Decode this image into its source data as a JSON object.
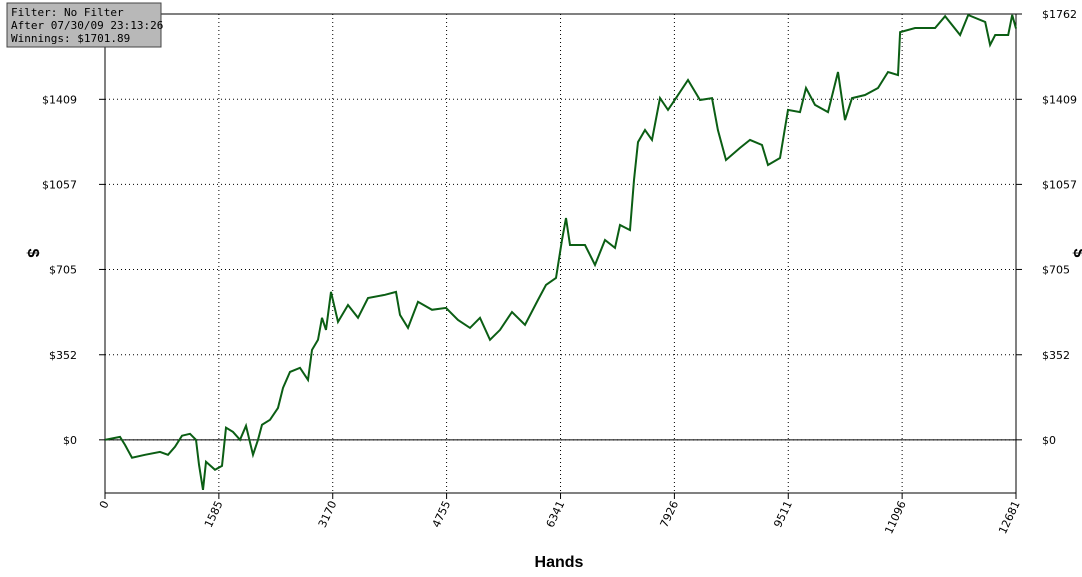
{
  "chart_data": {
    "type": "line",
    "info_box": [
      "Filter: No Filter",
      "After 07/30/09 23:13:26",
      "Winnings: $1701.89"
    ],
    "xlabel": "Hands",
    "ylabel": "$",
    "xlim": [
      0,
      12681
    ],
    "xticks": [
      0,
      1585,
      3170,
      4755,
      6341,
      7926,
      9511,
      11096,
      12681
    ],
    "ylim": [
      -220,
      1762
    ],
    "yticks": [
      {
        "value": 0,
        "label": "$0"
      },
      {
        "value": 352,
        "label": "$352"
      },
      {
        "value": 705,
        "label": "$705"
      },
      {
        "value": 1057,
        "label": "$1057"
      },
      {
        "value": 1409,
        "label": "$1409"
      },
      {
        "value": 1762,
        "label": "$1762"
      }
    ],
    "grid": true,
    "zero_line": true,
    "color": "#0b5e14",
    "x": [
      0,
      139,
      209,
      278,
      376,
      557,
      766,
      877,
      974,
      1072,
      1183,
      1267,
      1308,
      1364,
      1406,
      1531,
      1629,
      1684,
      1782,
      1879,
      1963,
      2060,
      2130,
      2185,
      2297,
      2408,
      2478,
      2575,
      2714,
      2826,
      2881,
      2965,
      3021,
      3076,
      3146,
      3243,
      3382,
      3522,
      3661,
      3898,
      4051,
      4106,
      4218,
      4357,
      4552,
      4747,
      4914,
      5081,
      5220,
      5359,
      5498,
      5665,
      5846,
      6027,
      6139,
      6278,
      6361,
      6417,
      6473,
      6682,
      6821,
      6960,
      7099,
      7169,
      7308,
      7364,
      7419,
      7517,
      7614,
      7725,
      7837,
      7948,
      8115,
      8282,
      8449,
      8532,
      8644,
      8839,
      8978,
      9145,
      9229,
      9396,
      9507,
      9674,
      9758,
      9883,
      10064,
      10203,
      10301,
      10398,
      10579,
      10760,
      10899,
      11039,
      11068,
      11277,
      11555,
      11694,
      11903,
      12015,
      12252,
      12321,
      12391,
      12572,
      12628,
      12681
    ],
    "values": [
      0,
      8,
      12,
      -21,
      -74,
      -62,
      -50,
      -62,
      -29,
      17,
      25,
      0,
      -103,
      -207,
      -91,
      -124,
      -108,
      50,
      33,
      0,
      58,
      -62,
      0,
      62,
      83,
      132,
      215,
      281,
      298,
      248,
      372,
      414,
      505,
      455,
      612,
      488,
      558,
      505,
      587,
      600,
      612,
      517,
      463,
      571,
      538,
      546,
      496,
      463,
      505,
      414,
      455,
      529,
      476,
      579,
      641,
      670,
      827,
      918,
      806,
      806,
      724,
      827,
      794,
      889,
      868,
      1075,
      1232,
      1282,
      1241,
      1414,
      1365,
      1414,
      1489,
      1406,
      1414,
      1282,
      1158,
      1208,
      1241,
      1220,
      1137,
      1166,
      1365,
      1356,
      1456,
      1386,
      1356,
      1522,
      1323,
      1414,
      1427,
      1456,
      1522,
      1509,
      1687,
      1704,
      1704,
      1753,
      1675,
      1758,
      1729,
      1634,
      1675,
      1675,
      1758,
      1702
    ]
  }
}
